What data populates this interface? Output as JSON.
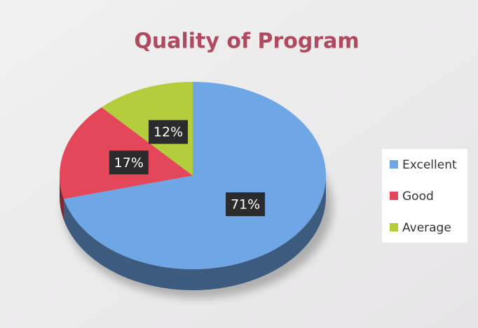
{
  "chart_data": {
    "type": "pie",
    "title": "Quality of Program",
    "categories": [
      "Excellent",
      "Good",
      "Average"
    ],
    "values": [
      71,
      17,
      12
    ],
    "value_labels": [
      "71%",
      "17%",
      "12%"
    ],
    "colors": [
      "#6ea6e6",
      "#e4475a",
      "#b3cd3d"
    ],
    "legend": "right"
  }
}
